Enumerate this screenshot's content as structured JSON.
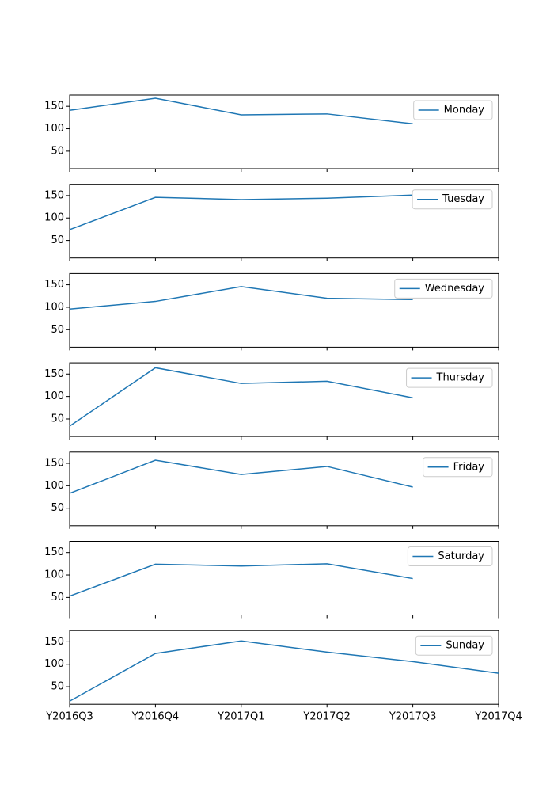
{
  "chart_data": {
    "type": "line",
    "categories": [
      "Y2016Q3",
      "Y2016Q4",
      "Y2017Q1",
      "Y2017Q2",
      "Y2017Q3",
      "Y2017Q4"
    ],
    "series": [
      {
        "name": "Monday",
        "color": "#1f77b4",
        "values": [
          141,
          168,
          131,
          133,
          111,
          null
        ]
      },
      {
        "name": "Tuesday",
        "color": "#1f77b4",
        "values": [
          74,
          146,
          141,
          144,
          151,
          null
        ]
      },
      {
        "name": "Wednesday",
        "color": "#1f77b4",
        "values": [
          96,
          113,
          146,
          120,
          117,
          null
        ]
      },
      {
        "name": "Thursday",
        "color": "#1f77b4",
        "values": [
          34,
          164,
          129,
          134,
          97,
          null
        ]
      },
      {
        "name": "Friday",
        "color": "#1f77b4",
        "values": [
          83,
          157,
          125,
          143,
          97,
          null
        ]
      },
      {
        "name": "Saturday",
        "color": "#1f77b4",
        "values": [
          53,
          124,
          120,
          125,
          92,
          null
        ]
      },
      {
        "name": "Sunday",
        "color": "#1f77b4",
        "values": [
          18,
          124,
          152,
          127,
          106,
          80
        ]
      }
    ],
    "ylim": [
      11,
      175
    ],
    "yticks": [
      50,
      100,
      150
    ],
    "subplots": true,
    "legend": "upper right"
  }
}
